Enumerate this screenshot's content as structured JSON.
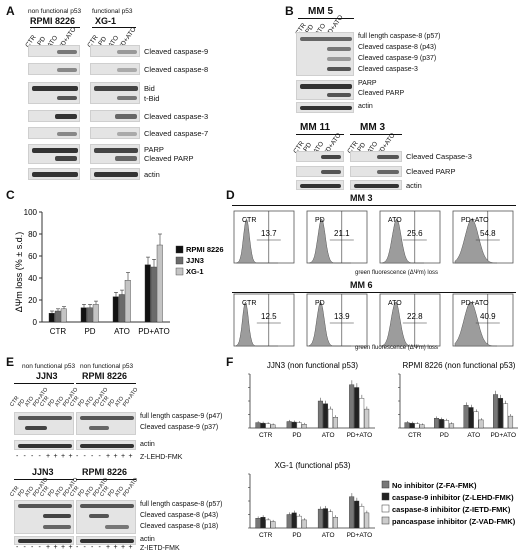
{
  "panel_labels": {
    "a": "A",
    "b": "B",
    "c": "C",
    "d": "D",
    "e": "E",
    "f": "F"
  },
  "lanes": [
    "CTR",
    "PD",
    "ATO",
    "PD+ATO"
  ],
  "panelA": {
    "left_note": "non functional p53",
    "left_cell": "RPMI 8226",
    "right_note": "functional p53",
    "right_cell": "XG-1",
    "rows": [
      "Cleaved caspase-9",
      "Cleaved caspase-8",
      "Bid",
      "t-Bid",
      "Cleaved caspase-3",
      "Cleaved caspase-7",
      "PARP",
      "Cleaved PARP",
      "actin"
    ]
  },
  "panelB": {
    "top_cell": "MM 5",
    "top_rows": [
      "full length caspase-8 (p57)",
      "Cleaved caspase-8 (p43)",
      "Cleaved caspase-9 (p37)",
      "Cleaved caspase-3",
      "PARP",
      "Cleaved PARP",
      "actin"
    ],
    "left_cell": "MM 11",
    "right_cell": "MM 3",
    "bottom_rows": [
      "Cleaved Caspase-3",
      "Cleaved PARP",
      "actin"
    ]
  },
  "panelD": {
    "mm3_title": "MM 3",
    "mm6_title": "MM 6",
    "mm3_values": [
      "13.7",
      "21.1",
      "25.6",
      "54.8"
    ],
    "mm6_values": [
      "12.5",
      "13.9",
      "22.8",
      "40.9"
    ],
    "xlabel": "green fluorescence (ΔΨm) loss"
  },
  "panelE": {
    "top_left_note": "non functional p53",
    "top_left_cell": "JJN3",
    "top_right_note": "non functional p53",
    "top_right_cell": "RPMI 8226",
    "top_rows": [
      "full length caspase-9 (p47)",
      "Cleaved caspase-9 (p37)",
      "actin"
    ],
    "top_inhibitor": "Z-LEHD-FMK",
    "bottom_left_cell": "JJN3",
    "bottom_right_cell": "RPMI 8226",
    "bottom_rows": [
      "full length caspase-8 (p57)",
      "Cleaved caspase-8 (p43)",
      "Cleaved caspase-8 (p18)",
      "actin"
    ],
    "bottom_inhibitor": "Z-IETD-FMK",
    "signs": [
      "-",
      "-",
      "-",
      "-",
      "+",
      "+",
      "+",
      "+",
      "-",
      "-",
      "-",
      "-",
      "+",
      "+",
      "+",
      "+"
    ]
  },
  "chart_data": [
    {
      "type": "bar",
      "panel": "C",
      "categories": [
        "CTR",
        "PD",
        "ATO",
        "PD+ATO"
      ],
      "ylabel": "ΔΨm loss (% ± s.d.)",
      "ylim": [
        0,
        100
      ],
      "yticks": [
        0,
        20,
        40,
        60,
        80,
        100
      ],
      "legend_position": "right",
      "series": [
        {
          "name": "RPMI 8226",
          "color": "#111111",
          "values": [
            8,
            13,
            23,
            52
          ],
          "errors": [
            2,
            3,
            4,
            7
          ]
        },
        {
          "name": "JJN3",
          "color": "#6b6b6b",
          "values": [
            10,
            13,
            25,
            50
          ],
          "errors": [
            2,
            3,
            4,
            7
          ]
        },
        {
          "name": "XG-1",
          "color": "#c4c4c4",
          "values": [
            12,
            16,
            38,
            70
          ],
          "errors": [
            2,
            3,
            7,
            10
          ]
        }
      ]
    },
    {
      "type": "bar",
      "panel": "F",
      "title": "JJN3 (non functional p53)",
      "categories": [
        "CTR",
        "PD",
        "ATO",
        "PD+ATO"
      ],
      "ylim": [
        0,
        100
      ],
      "series": [
        {
          "name": "No inhibitor (Z-FA-FMK)",
          "color": "#777777",
          "values": [
            10,
            12,
            50,
            80
          ]
        },
        {
          "name": "caspase-9 inhibitor (Z-LEHD-FMK)",
          "color": "#222222",
          "values": [
            9,
            11,
            45,
            75
          ]
        },
        {
          "name": "caspase-8 inhibitor (Z-IETD-FMK)",
          "color": "#ffffff",
          "values": [
            8,
            10,
            35,
            55
          ]
        },
        {
          "name": "pancaspase inhibitor (Z-VAD-FMK)",
          "color": "#cccccc",
          "values": [
            6,
            7,
            20,
            35
          ]
        }
      ]
    },
    {
      "type": "bar",
      "panel": "F",
      "title": "RPMI 8226 (non functional p53)",
      "categories": [
        "CTR",
        "PD",
        "ATO",
        "PD+ATO"
      ],
      "ylim": [
        0,
        100
      ],
      "series": [
        {
          "name": "No inhibitor (Z-FA-FMK)",
          "color": "#777777",
          "values": [
            10,
            18,
            42,
            62
          ]
        },
        {
          "name": "caspase-9 inhibitor (Z-LEHD-FMK)",
          "color": "#222222",
          "values": [
            9,
            16,
            38,
            55
          ]
        },
        {
          "name": "caspase-8 inhibitor (Z-IETD-FMK)",
          "color": "#ffffff",
          "values": [
            8,
            14,
            30,
            45
          ]
        },
        {
          "name": "pancaspase inhibitor (Z-VAD-FMK)",
          "color": "#cccccc",
          "values": [
            6,
            8,
            15,
            22
          ]
        }
      ]
    },
    {
      "type": "bar",
      "panel": "F",
      "title": "XG-1 (functional p53)",
      "categories": [
        "CTR",
        "PD",
        "ATO",
        "PD+ATO"
      ],
      "ylim": [
        0,
        100
      ],
      "series": [
        {
          "name": "No inhibitor (Z-FA-FMK)",
          "color": "#777777",
          "values": [
            18,
            25,
            35,
            58
          ]
        },
        {
          "name": "caspase-9 inhibitor (Z-LEHD-FMK)",
          "color": "#222222",
          "values": [
            20,
            28,
            36,
            50
          ]
        },
        {
          "name": "caspase-8 inhibitor (Z-IETD-FMK)",
          "color": "#ffffff",
          "values": [
            15,
            22,
            30,
            40
          ]
        },
        {
          "name": "pancaspase inhibitor (Z-VAD-FMK)",
          "color": "#cccccc",
          "values": [
            12,
            15,
            20,
            28
          ]
        }
      ]
    }
  ]
}
